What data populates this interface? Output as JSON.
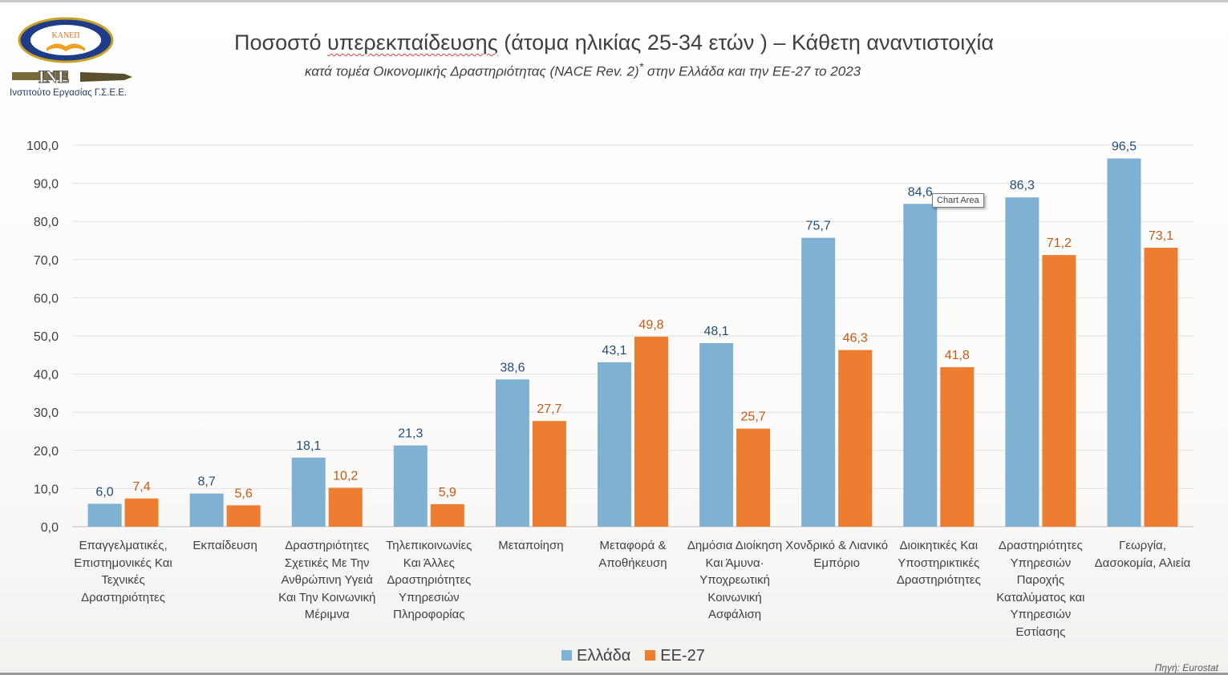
{
  "header": {
    "title_pre": "Ποσοστό ",
    "title_squiggly": "υπερεκπαίδευσης",
    "title_post": " (άτομα ηλικίας 25-34 ετών ) – Κάθετη αναντιστοιχία",
    "subtitle_pre": "κατά τομέα Οικονομικής Δραστηριότητας (NACE Rev. 2)",
    "subtitle_sup": "*",
    "subtitle_post": " στην Ελλάδα και την ΕΕ-27 το 2023"
  },
  "logo": {
    "seal_text": "ΚΑΝΕΠ ΓΣΕΕ",
    "ine_text": "INE",
    "caption": "Ινστιτούτο Εργασίας Γ.Σ.Ε.Ε."
  },
  "tooltip": "Chart Area",
  "source": "Πηγή: Eurostat",
  "colors": {
    "greece": "#7fb1d3",
    "eu27": "#ed7d31",
    "greece_label": "#1f4e79",
    "eu27_label": "#c55a11"
  },
  "chart_data": {
    "type": "bar",
    "ylim": [
      0,
      100
    ],
    "yticks": [
      "0,0",
      "10,0",
      "20,0",
      "30,0",
      "40,0",
      "50,0",
      "60,0",
      "70,0",
      "80,0",
      "90,0",
      "100,0"
    ],
    "grid": true,
    "legend_position": "bottom",
    "categories": [
      "Επαγγελματικές, Επιστημονικές Και Τεχνικές Δραστηριότητες",
      "Εκπαίδευση",
      "Δραστηριότητες Σχετικές Με Την Ανθρώπινη Υγειά Και Την Κοινωνική Μέριμνα",
      "Τηλεπικοινωνίες Και Άλλες Δραστηριότητες Υπηρεσιών Πληροφορίας",
      "Μεταποίηση",
      "Μεταφορά & Αποθήκευση",
      "Δημόσια Διοίκηση Και Άμυνα· Υποχρεωτική Κοινωνική Ασφάλιση",
      "Χονδρικό & Λιανικό Εμπόριο",
      "Διοικητικές Και Υποστηρικτικές Δραστηριότητες",
      "Δραστηριότητες Υπηρεσιών Παροχής Καταλύματος και Υπηρεσιών Εστίασης",
      "Γεωργία, Δασοκομία, Αλιεία"
    ],
    "series": [
      {
        "name": "Ελλάδα",
        "values": [
          6.0,
          8.7,
          18.1,
          21.3,
          38.6,
          43.1,
          48.1,
          75.7,
          84.6,
          86.3,
          96.5
        ],
        "labels": [
          "6,0",
          "8,7",
          "18,1",
          "21,3",
          "38,6",
          "43,1",
          "48,1",
          "75,7",
          "84,6",
          "86,3",
          "96,5"
        ]
      },
      {
        "name": "ΕΕ-27",
        "values": [
          7.4,
          5.6,
          10.2,
          5.9,
          27.7,
          49.8,
          25.7,
          46.3,
          41.8,
          71.2,
          73.1
        ],
        "labels": [
          "7,4",
          "5,6",
          "10,2",
          "5,9",
          "27,7",
          "49,8",
          "25,7",
          "46,3",
          "41,8",
          "71,2",
          "73,1"
        ]
      }
    ]
  }
}
